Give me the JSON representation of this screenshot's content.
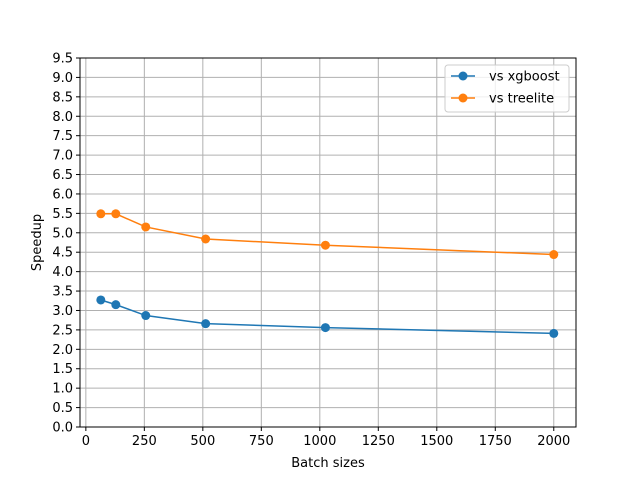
{
  "chart_data": {
    "type": "line",
    "xlabel": "Batch sizes",
    "ylabel": "Speedup",
    "xlim": [
      -25,
      2095
    ],
    "ylim": [
      0,
      9.5
    ],
    "xticks": [
      0,
      250,
      500,
      750,
      1000,
      1250,
      1500,
      1750,
      2000
    ],
    "xtick_labels": [
      "0",
      "250",
      "500",
      "750",
      "1000",
      "1250",
      "1500",
      "1750",
      "2000"
    ],
    "yticks": [
      0,
      0.5,
      1,
      1.5,
      2,
      2.5,
      3,
      3.5,
      4,
      4.5,
      5,
      5.5,
      6,
      6.5,
      7,
      7.5,
      8,
      8.5,
      9,
      9.5
    ],
    "ytick_labels": [
      "0.0",
      "0.5",
      "1.0",
      "1.5",
      "2.0",
      "2.5",
      "3.0",
      "3.5",
      "4.0",
      "4.5",
      "5.0",
      "5.5",
      "6.0",
      "6.5",
      "7.0",
      "7.5",
      "8.0",
      "8.5",
      "9.0",
      "9.5"
    ],
    "grid": true,
    "legend_position": "top-right",
    "x": [
      64,
      128,
      256,
      512,
      1024,
      2000
    ],
    "series": [
      {
        "name": "vs xgboost",
        "color": "#1f77b4",
        "values": [
          3.27,
          3.15,
          2.87,
          2.66,
          2.56,
          2.41
        ]
      },
      {
        "name": "vs treelite",
        "color": "#ff7f0e",
        "values": [
          5.49,
          5.49,
          5.15,
          4.84,
          4.68,
          4.44
        ]
      }
    ]
  }
}
